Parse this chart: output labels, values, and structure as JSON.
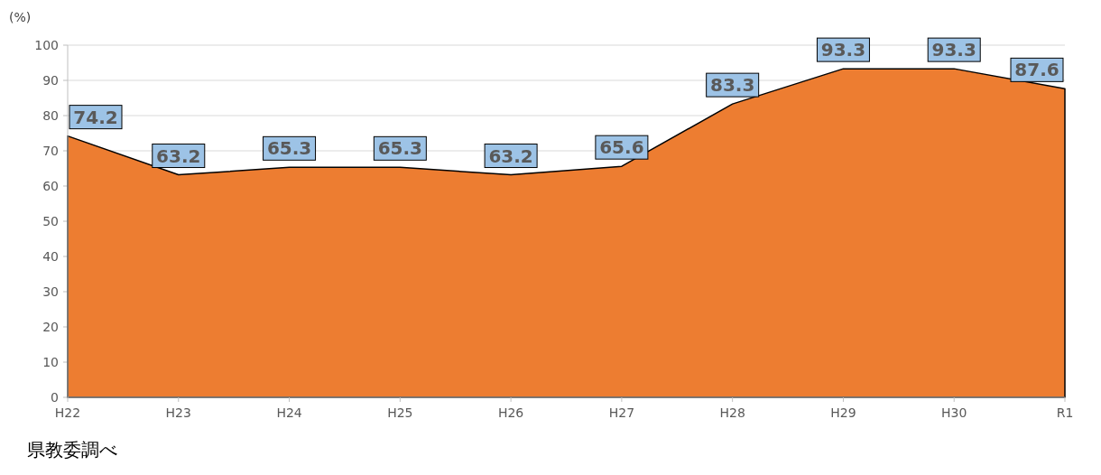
{
  "chart_data": {
    "type": "area",
    "categories": [
      "H22",
      "H23",
      "H24",
      "H25",
      "H26",
      "H27",
      "H28",
      "H29",
      "H30",
      "R1"
    ],
    "values": [
      74.2,
      63.2,
      65.3,
      65.3,
      63.2,
      65.6,
      83.3,
      93.3,
      93.3,
      87.6
    ],
    "color": "#ed7d31",
    "ylabel": "(%)",
    "ylim": [
      0,
      100
    ],
    "yticks": [
      0,
      10,
      20,
      30,
      40,
      50,
      60,
      70,
      80,
      90,
      100
    ],
    "grid": "y",
    "data_labels": true,
    "annotations": [
      "県教委調べ"
    ]
  }
}
